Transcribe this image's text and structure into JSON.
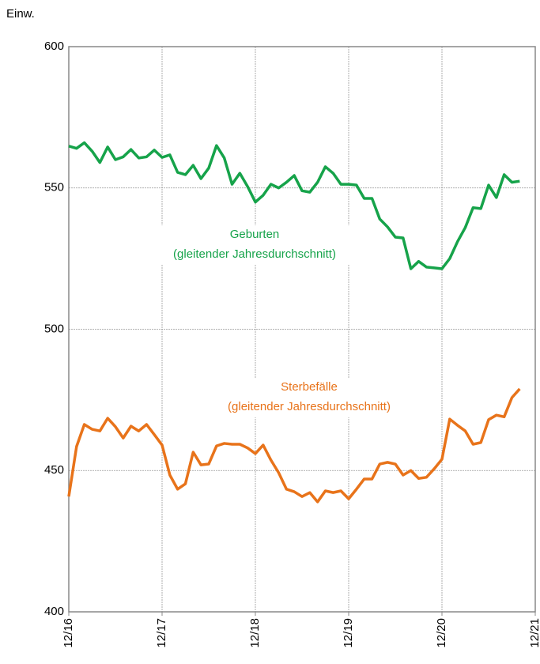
{
  "chart_data": {
    "type": "line",
    "y_unit": "Einw.",
    "annotation": "(gleitender Jahresdurchschnitt)",
    "x": [
      "12/16",
      "01/17",
      "02/17",
      "03/17",
      "04/17",
      "05/17",
      "06/17",
      "07/17",
      "08/17",
      "09/17",
      "10/17",
      "11/17",
      "12/17",
      "01/18",
      "02/18",
      "03/18",
      "04/18",
      "05/18",
      "06/18",
      "07/18",
      "08/18",
      "09/18",
      "10/18",
      "11/18",
      "12/18",
      "01/19",
      "02/19",
      "03/19",
      "04/19",
      "05/19",
      "06/19",
      "07/19",
      "08/19",
      "09/19",
      "10/19",
      "11/19",
      "12/19",
      "01/20",
      "02/20",
      "03/20",
      "04/20",
      "05/20",
      "06/20",
      "07/20",
      "08/20",
      "09/20",
      "10/20",
      "11/20",
      "12/20",
      "01/21",
      "02/21",
      "03/21",
      "04/21",
      "05/21",
      "06/21",
      "07/21",
      "08/21",
      "09/21",
      "10/21"
    ],
    "series": [
      {
        "name": "Geburten",
        "color": "#16a34a",
        "values": [
          564.8,
          564,
          566,
          563,
          559,
          564.5,
          560,
          561,
          563.6,
          560.6,
          561,
          563.4,
          560.8,
          561.7,
          555.5,
          554.7,
          558,
          553.3,
          557,
          565,
          560.6,
          551.3,
          555.2,
          550.5,
          545,
          547.4,
          551.3,
          550,
          552,
          554.4,
          549,
          548.5,
          552,
          557.5,
          555.2,
          551.3,
          551.3,
          551,
          546.3,
          546.3,
          539,
          536.2,
          532.6,
          532.3,
          521.4,
          524,
          522,
          521.7,
          521.4,
          525,
          531,
          536,
          543,
          542.7,
          551,
          546.6,
          554.7,
          552,
          552.4
        ]
      },
      {
        "name": "Sterbefälle",
        "color": "#e8731a",
        "values": [
          440.8,
          458.5,
          466.3,
          464.6,
          464,
          468.5,
          465.5,
          461.5,
          465.7,
          464,
          466.3,
          462.7,
          459,
          448.4,
          443.4,
          445.3,
          456.5,
          452,
          452.3,
          458.7,
          459.6,
          459.3,
          459.3,
          458,
          456,
          459,
          453.7,
          449.2,
          443.4,
          442.5,
          440.8,
          442.2,
          438.9,
          442.8,
          442.2,
          442.8,
          440,
          443.4,
          447,
          447,
          452.3,
          452.9,
          452.3,
          448.4,
          450,
          447.2,
          447.6,
          450.6,
          454,
          468.2,
          466,
          464,
          459.3,
          459.9,
          468,
          469.6,
          469,
          475.8,
          478.9
        ]
      }
    ],
    "xlim": [
      "12/16",
      "12/21"
    ],
    "xticks": [
      "12/16",
      "12/17",
      "12/18",
      "12/19",
      "12/20",
      "12/21"
    ],
    "ylim": [
      400,
      600
    ],
    "yticks": [
      400,
      450,
      500,
      550,
      600
    ],
    "grid": true
  }
}
